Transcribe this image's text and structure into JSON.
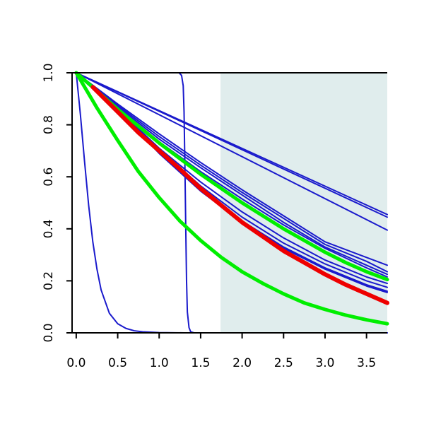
{
  "chart_data": {
    "type": "line",
    "title": "",
    "xlabel": "",
    "ylabel": "",
    "xlim": [
      -0.05,
      3.75
    ],
    "ylim": [
      0.0,
      1.0
    ],
    "x_ticks": [
      0.0,
      0.5,
      1.0,
      1.5,
      2.0,
      2.5,
      3.0,
      3.5
    ],
    "x_tick_labels": [
      "0.0",
      "0.5",
      "1.0",
      "1.5",
      "2.0",
      "2.5",
      "3.0",
      "3.5"
    ],
    "y_ticks": [
      0.0,
      0.2,
      0.4,
      0.6,
      0.8,
      1.0
    ],
    "y_tick_labels": [
      "0.0",
      "0.2",
      "0.4",
      "0.6",
      "0.8",
      "1.0"
    ],
    "grid": false,
    "legend": "none",
    "shaded_region": {
      "x_from": 1.74,
      "x_to": 3.75,
      "color": "#e0eded"
    },
    "colors": {
      "blue": "#1a1acc",
      "green": "#00ee00",
      "red": "#ee0000"
    },
    "series": [
      {
        "color": "blue",
        "width": 2,
        "points": [
          [
            0,
            1
          ],
          [
            0.05,
            0.84
          ],
          [
            0.1,
            0.66
          ],
          [
            0.15,
            0.49
          ],
          [
            0.2,
            0.35
          ],
          [
            0.25,
            0.245
          ],
          [
            0.3,
            0.165
          ],
          [
            0.4,
            0.075
          ],
          [
            0.5,
            0.035
          ],
          [
            0.6,
            0.017
          ],
          [
            0.7,
            0.008
          ],
          [
            0.8,
            0.004
          ],
          [
            1.0,
            0.001
          ],
          [
            1.3,
            0.0
          ],
          [
            3.75,
            0.0
          ]
        ]
      },
      {
        "color": "blue",
        "width": 2,
        "points": [
          [
            0,
            1
          ],
          [
            1.24,
            1.0
          ],
          [
            1.27,
            0.99
          ],
          [
            1.29,
            0.95
          ],
          [
            1.3,
            0.85
          ],
          [
            1.31,
            0.65
          ],
          [
            1.32,
            0.42
          ],
          [
            1.33,
            0.2
          ],
          [
            1.34,
            0.08
          ],
          [
            1.36,
            0.02
          ],
          [
            1.38,
            0.004
          ],
          [
            1.42,
            0.0
          ],
          [
            3.75,
            0.0
          ]
        ]
      },
      {
        "color": "blue",
        "width": 2,
        "points": [
          [
            0,
            1
          ],
          [
            3.75,
            0.455
          ]
        ]
      },
      {
        "color": "blue",
        "width": 2,
        "points": [
          [
            0,
            1
          ],
          [
            3.75,
            0.445
          ]
        ]
      },
      {
        "color": "blue",
        "width": 2,
        "points": [
          [
            0,
            1
          ],
          [
            3.75,
            0.395
          ]
        ]
      },
      {
        "color": "blue",
        "width": 2,
        "points": [
          [
            0,
            1
          ],
          [
            0.5,
            0.88
          ],
          [
            1.0,
            0.765
          ],
          [
            1.5,
            0.655
          ],
          [
            2.0,
            0.55
          ],
          [
            2.5,
            0.45
          ],
          [
            3.0,
            0.35
          ],
          [
            3.5,
            0.29
          ],
          [
            3.75,
            0.26
          ]
        ]
      },
      {
        "color": "blue",
        "width": 2,
        "points": [
          [
            0,
            1
          ],
          [
            0.5,
            0.875
          ],
          [
            1.0,
            0.755
          ],
          [
            1.5,
            0.645
          ],
          [
            2.0,
            0.54
          ],
          [
            2.5,
            0.44
          ],
          [
            3.0,
            0.34
          ],
          [
            3.5,
            0.275
          ],
          [
            3.75,
            0.235
          ]
        ]
      },
      {
        "color": "blue",
        "width": 2,
        "points": [
          [
            0,
            1
          ],
          [
            0.5,
            0.87
          ],
          [
            1.0,
            0.745
          ],
          [
            1.5,
            0.635
          ],
          [
            2.0,
            0.53
          ],
          [
            2.5,
            0.425
          ],
          [
            3.0,
            0.33
          ],
          [
            3.5,
            0.26
          ],
          [
            3.75,
            0.225
          ]
        ]
      },
      {
        "color": "blue",
        "width": 2,
        "points": [
          [
            0,
            1
          ],
          [
            0.5,
            0.865
          ],
          [
            1.0,
            0.735
          ],
          [
            1.5,
            0.62
          ],
          [
            2.0,
            0.515
          ],
          [
            2.5,
            0.415
          ],
          [
            3.0,
            0.325
          ],
          [
            3.5,
            0.25
          ],
          [
            3.75,
            0.215
          ]
        ]
      },
      {
        "color": "blue",
        "width": 2,
        "points": [
          [
            0,
            1
          ],
          [
            0.5,
            0.86
          ],
          [
            1.0,
            0.71
          ],
          [
            1.5,
            0.58
          ],
          [
            2.0,
            0.465
          ],
          [
            2.5,
            0.365
          ],
          [
            3.0,
            0.28
          ],
          [
            3.5,
            0.215
          ],
          [
            3.75,
            0.19
          ]
        ]
      },
      {
        "color": "blue",
        "width": 2,
        "points": [
          [
            0,
            1
          ],
          [
            0.5,
            0.86
          ],
          [
            1.0,
            0.705
          ],
          [
            1.5,
            0.565
          ],
          [
            2.0,
            0.445
          ],
          [
            2.5,
            0.345
          ],
          [
            3.0,
            0.265
          ],
          [
            3.5,
            0.2
          ],
          [
            3.75,
            0.175
          ]
        ]
      },
      {
        "color": "blue",
        "width": 2,
        "points": [
          [
            0,
            1
          ],
          [
            0.5,
            0.855
          ],
          [
            1.0,
            0.695
          ],
          [
            1.5,
            0.55
          ],
          [
            2.0,
            0.43
          ],
          [
            2.5,
            0.33
          ],
          [
            3.0,
            0.25
          ],
          [
            3.5,
            0.185
          ],
          [
            3.75,
            0.16
          ]
        ]
      },
      {
        "color": "blue",
        "width": 2,
        "points": [
          [
            0,
            1
          ],
          [
            0.5,
            0.855
          ],
          [
            1.0,
            0.69
          ],
          [
            1.5,
            0.545
          ],
          [
            2.0,
            0.425
          ],
          [
            2.5,
            0.325
          ],
          [
            3.0,
            0.245
          ],
          [
            3.5,
            0.18
          ],
          [
            3.75,
            0.155
          ]
        ]
      },
      {
        "color": "green",
        "width": 5,
        "points": [
          [
            0,
            1
          ],
          [
            0.25,
            0.93
          ],
          [
            0.5,
            0.86
          ],
          [
            0.75,
            0.795
          ],
          [
            1.0,
            0.73
          ],
          [
            1.25,
            0.67
          ],
          [
            1.5,
            0.61
          ],
          [
            1.75,
            0.555
          ],
          [
            2.0,
            0.5
          ],
          [
            2.25,
            0.45
          ],
          [
            2.5,
            0.4
          ],
          [
            2.75,
            0.355
          ],
          [
            3.0,
            0.31
          ],
          [
            3.25,
            0.27
          ],
          [
            3.5,
            0.235
          ],
          [
            3.75,
            0.205
          ]
        ]
      },
      {
        "color": "green",
        "width": 5,
        "points": [
          [
            0,
            1
          ],
          [
            0.25,
            0.865
          ],
          [
            0.5,
            0.74
          ],
          [
            0.75,
            0.62
          ],
          [
            1.0,
            0.52
          ],
          [
            1.25,
            0.43
          ],
          [
            1.5,
            0.355
          ],
          [
            1.75,
            0.29
          ],
          [
            2.0,
            0.235
          ],
          [
            2.25,
            0.19
          ],
          [
            2.5,
            0.15
          ],
          [
            2.75,
            0.115
          ],
          [
            3.0,
            0.09
          ],
          [
            3.25,
            0.068
          ],
          [
            3.5,
            0.05
          ],
          [
            3.75,
            0.035
          ]
        ]
      },
      {
        "color": "red",
        "width": 6,
        "points": [
          [
            0.2,
            0.945
          ],
          [
            0.5,
            0.85
          ],
          [
            0.75,
            0.77
          ],
          [
            1.0,
            0.7
          ],
          [
            1.25,
            0.63
          ],
          [
            1.5,
            0.555
          ],
          [
            1.75,
            0.49
          ],
          [
            2.0,
            0.425
          ],
          [
            2.25,
            0.37
          ],
          [
            2.5,
            0.315
          ],
          [
            2.75,
            0.27
          ],
          [
            3.0,
            0.225
          ],
          [
            3.25,
            0.185
          ],
          [
            3.5,
            0.15
          ],
          [
            3.75,
            0.115
          ]
        ]
      }
    ]
  }
}
